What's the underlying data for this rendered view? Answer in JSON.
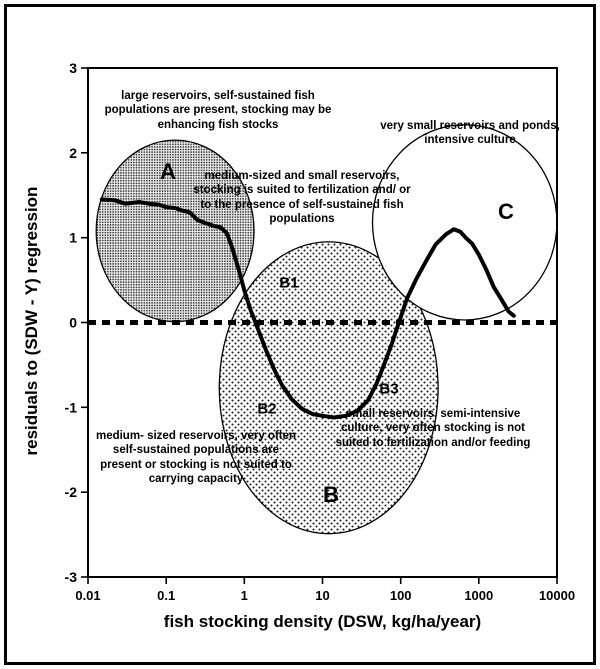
{
  "chart_data": {
    "type": "line",
    "title": "",
    "x_scale": "log",
    "xlim": [
      0.01,
      10000
    ],
    "ylim": [
      -3,
      3
    ],
    "grid": false,
    "xlabel": "fish stocking density  (DSW, kg/ha/year)",
    "ylabel": "residuals to (SDW - Y) regression",
    "x_ticks": [
      "0.01",
      "0.1",
      "1",
      "10",
      "100",
      "1000",
      "10000"
    ],
    "x_tick_values": [
      0.01,
      0.1,
      1,
      10,
      100,
      1000,
      10000
    ],
    "y_ticks": [
      "3",
      "2",
      "1",
      "0",
      "-1",
      "-2",
      "-3"
    ],
    "y_tick_values": [
      3,
      2,
      1,
      0,
      -1,
      -2,
      -3
    ],
    "zero_line_y": 0,
    "series": [
      {
        "name": "residual trend curve",
        "points": [
          [
            0.015,
            1.45
          ],
          [
            0.022,
            1.44
          ],
          [
            0.03,
            1.4
          ],
          [
            0.045,
            1.42
          ],
          [
            0.06,
            1.4
          ],
          [
            0.08,
            1.39
          ],
          [
            0.1,
            1.36
          ],
          [
            0.13,
            1.35
          ],
          [
            0.16,
            1.32
          ],
          [
            0.2,
            1.3
          ],
          [
            0.25,
            1.21
          ],
          [
            0.3,
            1.18
          ],
          [
            0.4,
            1.14
          ],
          [
            0.5,
            1.12
          ],
          [
            0.6,
            1.05
          ],
          [
            0.7,
            0.88
          ],
          [
            0.85,
            0.62
          ],
          [
            1.0,
            0.38
          ],
          [
            1.2,
            0.15
          ],
          [
            1.5,
            -0.08
          ],
          [
            1.9,
            -0.33
          ],
          [
            2.4,
            -0.55
          ],
          [
            3,
            -0.73
          ],
          [
            4,
            -0.9
          ],
          [
            5.5,
            -1.02
          ],
          [
            7.5,
            -1.08
          ],
          [
            10,
            -1.1
          ],
          [
            14,
            -1.12
          ],
          [
            20,
            -1.1
          ],
          [
            28,
            -1.04
          ],
          [
            38,
            -0.92
          ],
          [
            48,
            -0.74
          ],
          [
            60,
            -0.52
          ],
          [
            75,
            -0.28
          ],
          [
            95,
            0.0
          ],
          [
            120,
            0.28
          ],
          [
            160,
            0.52
          ],
          [
            210,
            0.72
          ],
          [
            280,
            0.92
          ],
          [
            380,
            1.04
          ],
          [
            480,
            1.1
          ],
          [
            580,
            1.07
          ],
          [
            680,
            1.0
          ],
          [
            820,
            0.93
          ],
          [
            1000,
            0.8
          ],
          [
            1250,
            0.62
          ],
          [
            1550,
            0.42
          ],
          [
            1950,
            0.27
          ],
          [
            2400,
            0.13
          ],
          [
            2800,
            0.08
          ]
        ]
      }
    ],
    "ellipses": [
      {
        "label": "B",
        "cx": 12,
        "cy": -0.77,
        "rx_log": 1.4,
        "ry": 1.72,
        "fill": "sparse-dots"
      },
      {
        "label": "A",
        "cx": 0.13,
        "cy": 1.08,
        "rx_log": 1.01,
        "ry": 1.07,
        "fill": "dense-dots"
      },
      {
        "label": "C",
        "cx": 660,
        "cy": 1.18,
        "rx_log": 1.18,
        "ry": 1.15,
        "fill": "white"
      }
    ],
    "region_labels": {
      "a": "A",
      "b": "B",
      "c": "C",
      "b1": "B1",
      "b2": "B2",
      "b3": "B3"
    },
    "annotations": {
      "upper_left": "large reservoirs, self-sustained fish populations are present, stocking may be enhancing fish stocks",
      "upper_right": "very small reservoirs and ponds, intensive culture",
      "center": "medium-sized and small reservoirs, stocking is suited to fertilization and/ or to the presence of self-sustained fish populations",
      "lower_left": "medium- sized reservoirs, very often self-sustained  populations are present or stocking is not suited to carrying capacity",
      "lower_right": "small reservoirs, semi-intensive culture, very often stocking is not suited to fertilization and/or feeding"
    },
    "colors": {
      "curve": "#000000",
      "zero_line": "#000000",
      "axis": "#000000",
      "stipple_dense": "#2f2f2f",
      "stipple_sparse": "#1a1a1a",
      "ellipse_c_fill": "#ffffff"
    }
  }
}
